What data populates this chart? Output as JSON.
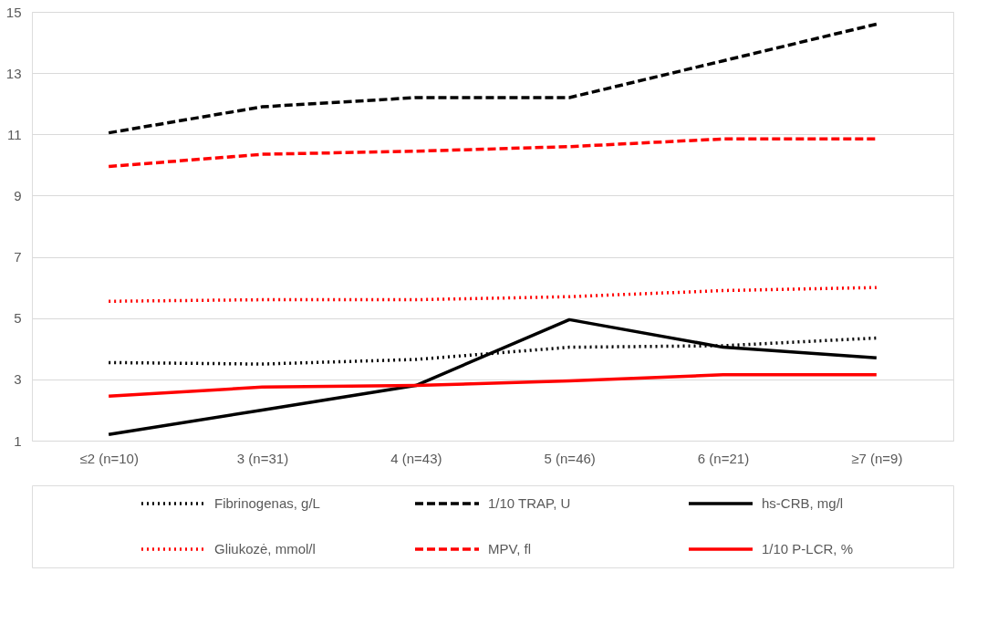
{
  "chart_data": {
    "type": "line",
    "categories": [
      "≤2 (n=10)",
      "3 (n=31)",
      "4 (n=43)",
      "5 (n=46)",
      "6 (n=21)",
      "≥7 (n=9)"
    ],
    "series": [
      {
        "name": "Fibrinogenas, g/L",
        "color": "#000000",
        "line_style": "dotted",
        "values": [
          3.55,
          3.5,
          3.65,
          4.05,
          4.1,
          4.35
        ]
      },
      {
        "name": "1/10 TRAP, U",
        "color": "#000000",
        "line_style": "dashed",
        "values": [
          11.05,
          11.9,
          12.2,
          12.2,
          13.4,
          14.6
        ]
      },
      {
        "name": "hs-CRB, mg/l",
        "color": "#000000",
        "line_style": "solid",
        "values": [
          1.2,
          2.0,
          2.8,
          4.95,
          4.05,
          3.7
        ]
      },
      {
        "name": "Gliukozė, mmol/l",
        "color": "#ff0000",
        "line_style": "dotted",
        "values": [
          5.55,
          5.6,
          5.6,
          5.7,
          5.9,
          6.0
        ]
      },
      {
        "name": "MPV, fl",
        "color": "#ff0000",
        "line_style": "dashed",
        "values": [
          9.95,
          10.35,
          10.45,
          10.6,
          10.85,
          10.85
        ]
      },
      {
        "name": "1/10 P-LCR, %",
        "color": "#ff0000",
        "line_style": "solid",
        "values": [
          2.45,
          2.75,
          2.8,
          2.95,
          3.15,
          3.15
        ]
      }
    ],
    "ylim": [
      1,
      15
    ],
    "yticks": [
      1,
      3,
      5,
      7,
      9,
      11,
      13,
      15
    ],
    "grid": "y",
    "legend": "bottom",
    "marker": "none"
  }
}
